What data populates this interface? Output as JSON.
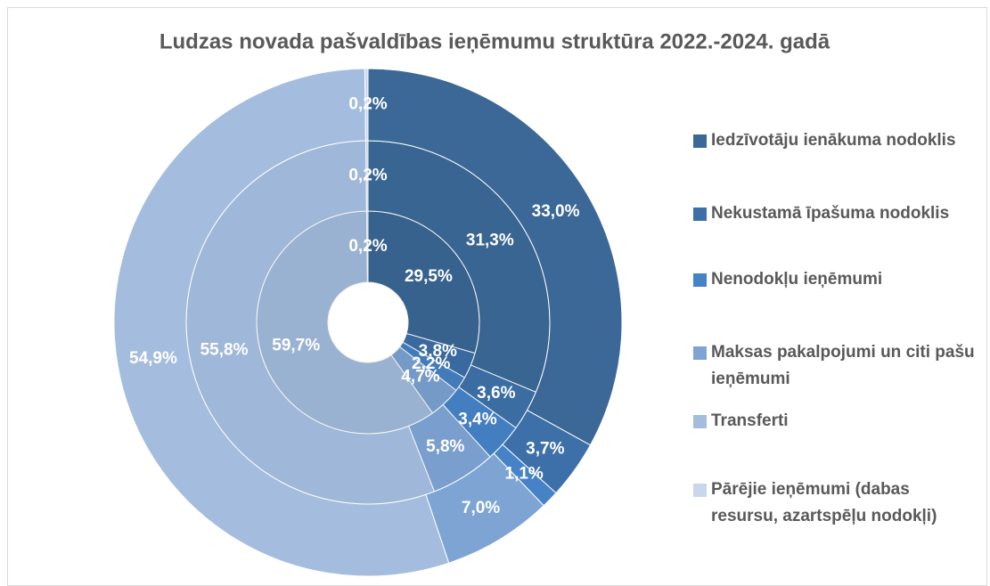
{
  "chart_data": {
    "type": "donut",
    "title": "Ludzas novada pašvaldības ieņēmumu struktūra 2022.-2024. gadā",
    "categories": [
      "Iedzīvotāju ienākuma nodoklis",
      "Nekustamā īpašuma nodoklis",
      "Nenodokļu ieņēmumi",
      "Maksas pakalpojumi un citi pašu ieņēmumi",
      "Transferti",
      "Pārējie ieņēmumi (dabas resursu, azartspēļu nodokļi)"
    ],
    "colors": [
      "#3b6896",
      "#3d70a8",
      "#4583c6",
      "#7ea4d4",
      "#a4bddf",
      "#c8d7ec"
    ],
    "rings": [
      {
        "values": [
          29.5,
          3.8,
          2.2,
          4.7,
          59.7,
          0.2
        ],
        "value_labels": [
          "29,5%",
          "3,8%",
          "2,2%",
          "4,7%",
          "59,7%",
          "0,2%"
        ]
      },
      {
        "values": [
          31.3,
          3.6,
          3.4,
          5.8,
          55.8,
          0.2
        ],
        "value_labels": [
          "31,3%",
          "3,6%",
          "3,4%",
          "5,8%",
          "55,8%",
          "0,2%"
        ]
      },
      {
        "values": [
          33.0,
          3.7,
          1.1,
          7.0,
          54.9,
          0.2
        ],
        "value_labels": [
          "33,0%",
          "3,7%",
          "1,1%",
          "7,0%",
          "54,9%",
          "0,2%"
        ]
      }
    ]
  }
}
